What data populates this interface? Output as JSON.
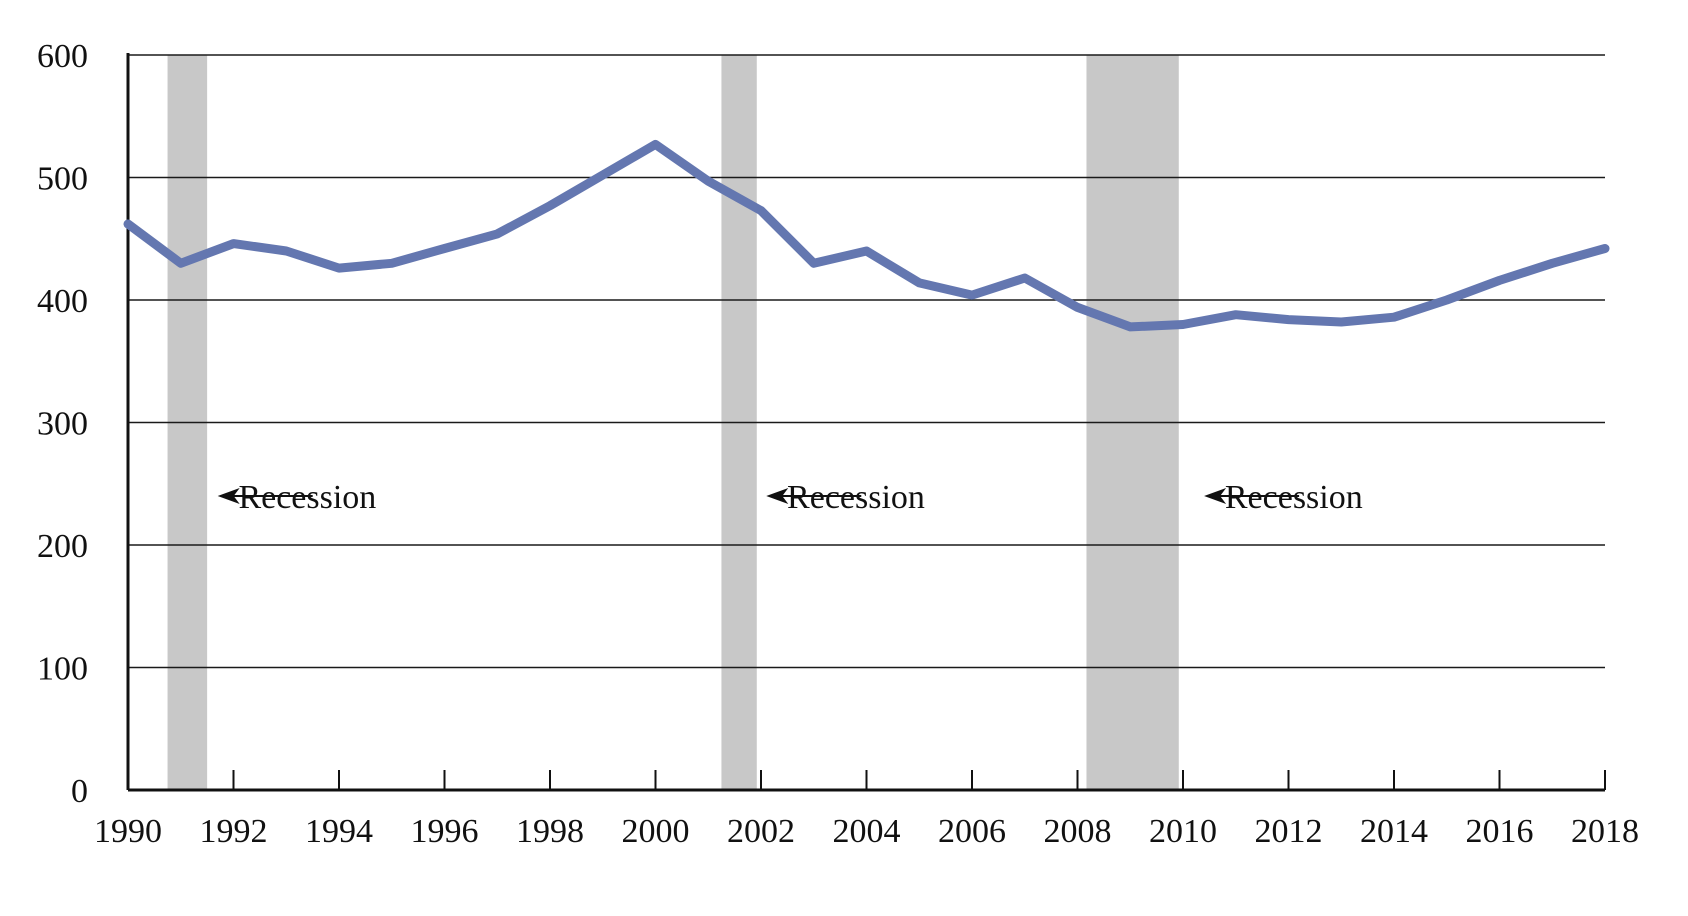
{
  "chart_data": {
    "type": "line",
    "title": "",
    "xlabel": "",
    "ylabel": "",
    "xlim": [
      1990,
      2018
    ],
    "ylim": [
      0,
      600
    ],
    "grid": true,
    "x_ticks": [
      1990,
      1992,
      1994,
      1996,
      1998,
      2000,
      2002,
      2004,
      2006,
      2008,
      2010,
      2012,
      2014,
      2016,
      2018
    ],
    "y_ticks": [
      0,
      100,
      200,
      300,
      400,
      500,
      600
    ],
    "series": [
      {
        "color": "#6477b0",
        "x": [
          1990,
          1991,
          1992,
          1993,
          1994,
          1995,
          1996,
          1997,
          1998,
          1999,
          2000,
          2001,
          2002,
          2003,
          2004,
          2005,
          2006,
          2007,
          2008,
          2009,
          2010,
          2011,
          2012,
          2013,
          2014,
          2015,
          2016,
          2017,
          2018
        ],
        "y": [
          462,
          430,
          446,
          440,
          426,
          430,
          442,
          454,
          477,
          502,
          527,
          497,
          473,
          430,
          440,
          414,
          404,
          418,
          394,
          378,
          380,
          388,
          384,
          382,
          386,
          400,
          416,
          430,
          442
        ]
      }
    ],
    "recessions": [
      {
        "start": 1990.75,
        "end": 1991.5
      },
      {
        "start": 2001.25,
        "end": 2001.92
      },
      {
        "start": 2008.17,
        "end": 2009.92
      }
    ],
    "annotations": [
      {
        "text": "Recession",
        "arrow_tip_x": 1991.7,
        "text_x": 1993.8,
        "y": 240
      },
      {
        "text": "Recession",
        "arrow_tip_x": 2002.1,
        "text_x": 2004.2,
        "y": 240
      },
      {
        "text": "Recession",
        "arrow_tip_x": 2010.4,
        "text_x": 2012.5,
        "y": 240
      }
    ],
    "colors": {
      "line": "#6477b0",
      "recession": "#c8c8c8",
      "grid": "#1a1a1a",
      "axis": "#111111"
    }
  }
}
